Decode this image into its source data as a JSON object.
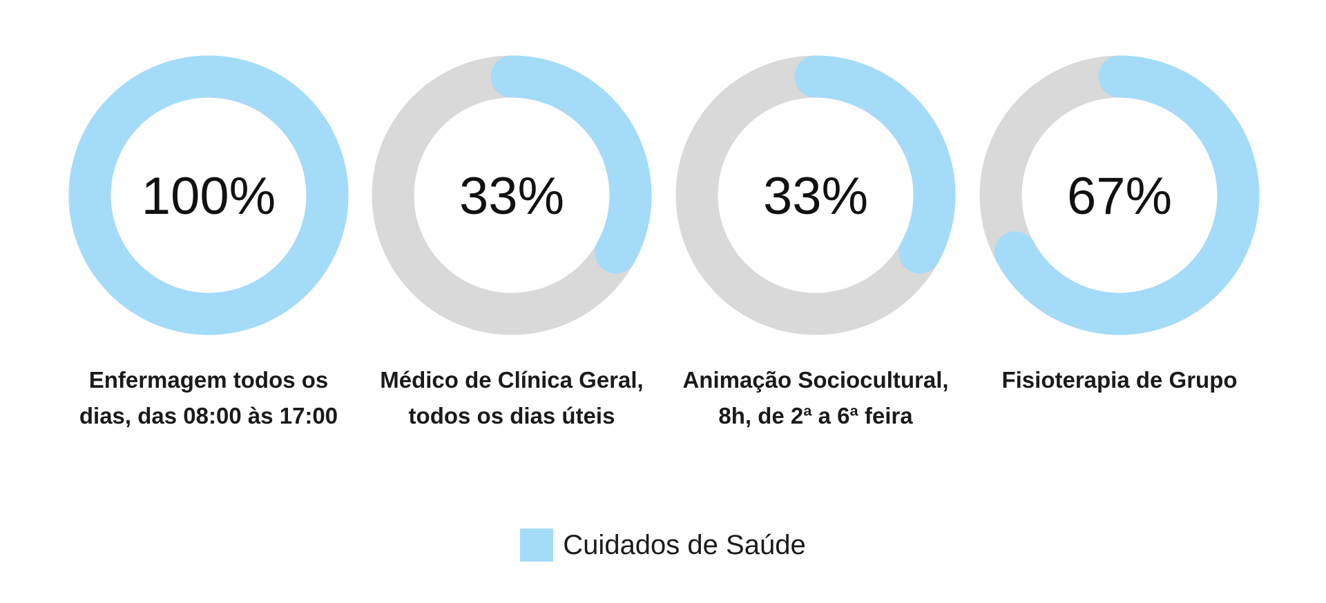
{
  "chart_data": {
    "type": "donut",
    "categories": [
      "Enfermagem todos os\ndias, das 08:00 às 17:00",
      "Médico de Clínica Geral,\ntodos os dias úteis",
      "Animação Sociocultural,\n8h, de 2ª a 6ª feira",
      "Fisioterapia de Grupo"
    ],
    "series": [
      {
        "name": "Cuidados de Saúde",
        "values": [
          100,
          33,
          33,
          67
        ],
        "labels": [
          "100%",
          "33%",
          "33%",
          "67%"
        ],
        "color": "#a4dbf9"
      }
    ],
    "remainder_color": "#d9d9d9",
    "ylim": [
      0,
      100
    ],
    "legend": {
      "position": "bottom-center",
      "items": [
        "Cuidados de Saúde"
      ]
    }
  }
}
